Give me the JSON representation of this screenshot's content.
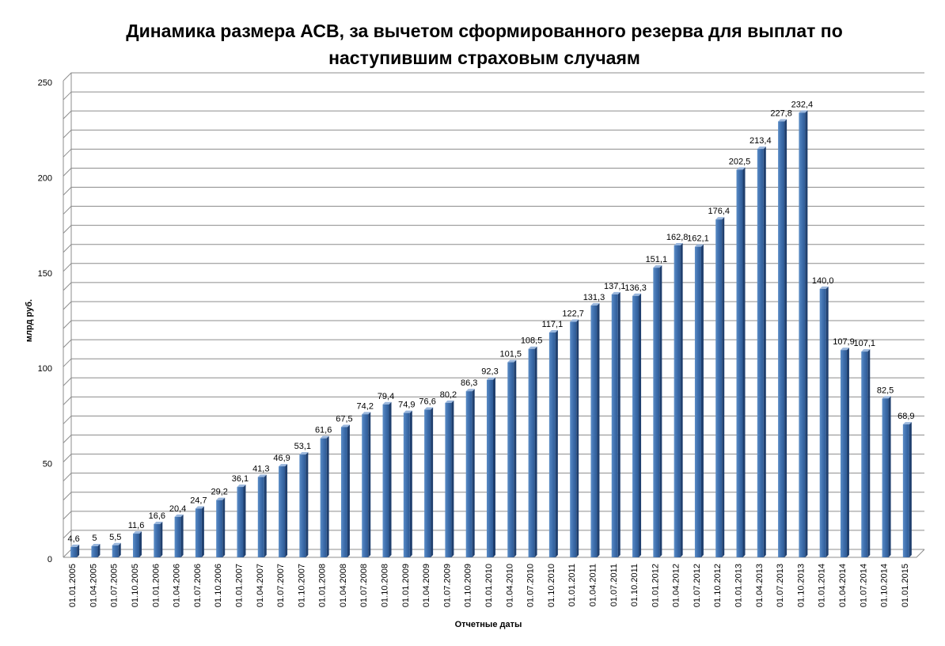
{
  "chart_data": {
    "type": "bar",
    "title_lines": [
      "Динамика размера АСВ, за вычетом сформированного резерва для выплат по",
      "наступившим страховым случаям"
    ],
    "xlabel": "Отчетные даты",
    "ylabel": "млрд руб.",
    "ylim": [
      0,
      250
    ],
    "yticks": [
      "0",
      "50",
      "100",
      "150",
      "200",
      "250"
    ],
    "grid": true,
    "legend": "none",
    "bar_color": "#4F81BD",
    "categories": [
      "01.01.2005",
      "01.04.2005",
      "01.07.2005",
      "01.10.2005",
      "01.01.2006",
      "01.04.2006",
      "01.07.2006",
      "01.10.2006",
      "01.01.2007",
      "01.04.2007",
      "01.07.2007",
      "01.10.2007",
      "01.01.2008",
      "01.04.2008",
      "01.07.2008",
      "01.10.2008",
      "01.01.2009",
      "01.04.2009",
      "01.07.2009",
      "01.10.2009",
      "01.01.2010",
      "01.04.2010",
      "01.07.2010",
      "01.10.2010",
      "01.01.2011",
      "01.04.2011",
      "01.07.2011",
      "01.10.2011",
      "01.01.2012",
      "01.04.2012",
      "01.07.2012",
      "01.10.2012",
      "01.01.2013",
      "01.04.2013",
      "01.07.2013",
      "01.10.2013",
      "01.01.2014",
      "01.04.2014",
      "01.07.2014",
      "01.10.2014",
      "01.01.2015"
    ],
    "values": [
      4.6,
      5,
      5.5,
      11.6,
      16.6,
      20.4,
      24.7,
      29.2,
      36.1,
      41.3,
      46.9,
      53.1,
      61.6,
      67.5,
      74.2,
      79.4,
      74.9,
      76.6,
      80.2,
      86.3,
      92.3,
      101.5,
      108.5,
      117.1,
      122.7,
      131.3,
      137.1,
      136.3,
      151.1,
      162.8,
      162.1,
      176.4,
      202.5,
      213.4,
      227.8,
      232.4,
      140.0,
      107.9,
      107.1,
      82.5,
      68.9
    ],
    "data_labels": [
      "4,6",
      "5",
      "5,5",
      "11,6",
      "16,6",
      "20,4",
      "24,7",
      "29,2",
      "36,1",
      "41,3",
      "46,9",
      "53,1",
      "61,6",
      "67,5",
      "74,2",
      "79,4",
      "74,9",
      "76,6",
      "80,2",
      "86,3",
      "92,3",
      "101,5",
      "108,5",
      "117,1",
      "122,7",
      "131,3",
      "137,1",
      "136,3",
      "151,1",
      "162,8",
      "162,1",
      "176,4",
      "202,5",
      "213,4",
      "227,8",
      "232,4",
      "140,0",
      "107,9",
      "107,1",
      "82,5",
      "68,9"
    ]
  }
}
